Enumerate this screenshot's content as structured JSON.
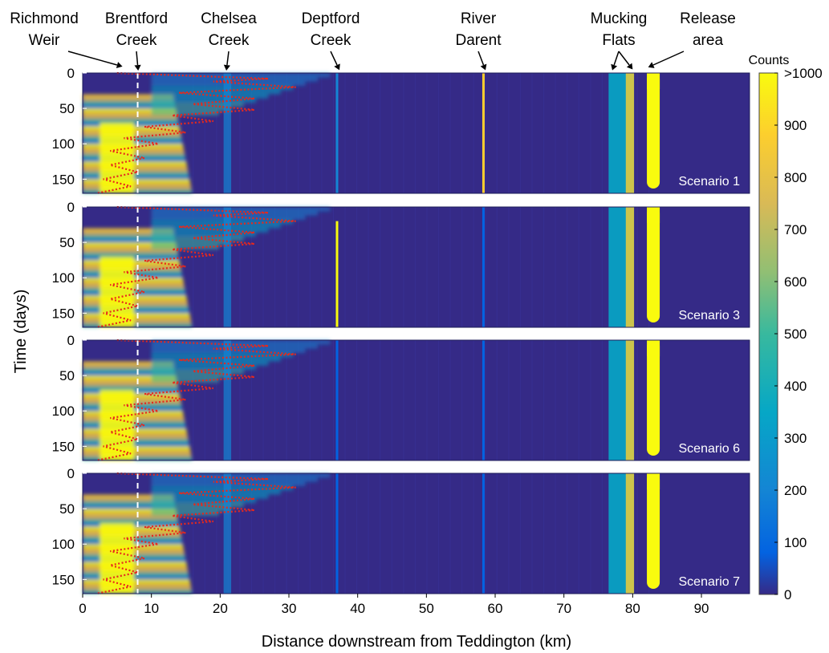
{
  "chart_data": {
    "type": "heatmap",
    "xlabel": "Distance downstream from Teddington (km)",
    "ylabel": "Time (days)",
    "xlim": [
      0,
      97
    ],
    "ylim": [
      170,
      0
    ],
    "x_ticks": [
      "0",
      "10",
      "20",
      "30",
      "40",
      "50",
      "60",
      "70",
      "80",
      "90"
    ],
    "y_ticks": [
      "0",
      "50",
      "100",
      "150"
    ],
    "colorbar": {
      "title": "Counts",
      "ticks": [
        "0",
        "100",
        "200",
        "300",
        "400",
        "500",
        "600",
        "700",
        "800",
        "900",
        ">1000"
      ],
      "range": [
        0,
        1000
      ],
      "colors": [
        "#352a87",
        "#0363e1",
        "#1485d4",
        "#06a7c6",
        "#38b99e",
        "#92bf73",
        "#d9ba56",
        "#fcce2e",
        "#f9fb0e"
      ]
    },
    "locations": [
      {
        "label": [
          "Richmond",
          "Weir"
        ],
        "km": 5
      },
      {
        "label": [
          "Brentford",
          "Creek"
        ],
        "km": 8
      },
      {
        "label": [
          "Chelsea",
          "Creek"
        ],
        "km": 21
      },
      {
        "label": [
          "Deptford",
          "Creek"
        ],
        "km": 37
      },
      {
        "label": [
          "River",
          "Darent"
        ],
        "km": 58.3
      },
      {
        "label": [
          "Mucking",
          "Flats"
        ],
        "km": [
          77.3,
          79.5
        ]
      },
      {
        "label": [
          "Release",
          "area"
        ],
        "km": 83
      }
    ],
    "reference_line_km": 8,
    "panels": [
      {
        "name": "Scenario 1",
        "stripes": [
          {
            "km": 58.3,
            "from_day": 0,
            "count": 900
          },
          {
            "km": 37,
            "from_day": 0,
            "count": 200
          }
        ]
      },
      {
        "name": "Scenario 3",
        "stripes": [
          {
            "km": 37,
            "from_day": 20,
            "count": 1000
          },
          {
            "km": 58.3,
            "from_day": 0,
            "count": 150
          }
        ]
      },
      {
        "name": "Scenario 6",
        "stripes": [
          {
            "km": 37,
            "from_day": 0,
            "count": 150
          },
          {
            "km": 58.3,
            "from_day": 0,
            "count": 120
          }
        ]
      },
      {
        "name": "Scenario 7",
        "stripes": [
          {
            "km": 37,
            "from_day": 0,
            "count": 150
          },
          {
            "km": 58.3,
            "from_day": 0,
            "count": 120
          }
        ]
      }
    ],
    "release_area": {
      "km": 83,
      "count": 1000
    },
    "mucking_flats_band": {
      "from_km": 76.5,
      "to_km": 80.2,
      "count": 350
    },
    "upstream_band": {
      "from_km": 0,
      "to_km": 16,
      "count": 1000
    },
    "front_trace_days_km": [
      [
        0,
        5
      ],
      [
        8,
        27
      ],
      [
        12,
        19
      ],
      [
        20,
        31
      ],
      [
        28,
        14
      ],
      [
        36,
        25
      ],
      [
        44,
        16
      ],
      [
        52,
        25
      ],
      [
        60,
        13
      ],
      [
        68,
        19
      ],
      [
        76,
        9
      ],
      [
        84,
        15
      ],
      [
        92,
        6
      ],
      [
        100,
        11
      ],
      [
        110,
        4
      ],
      [
        120,
        9
      ],
      [
        130,
        4
      ],
      [
        140,
        8
      ],
      [
        150,
        3
      ],
      [
        160,
        7
      ],
      [
        170,
        2
      ]
    ]
  }
}
